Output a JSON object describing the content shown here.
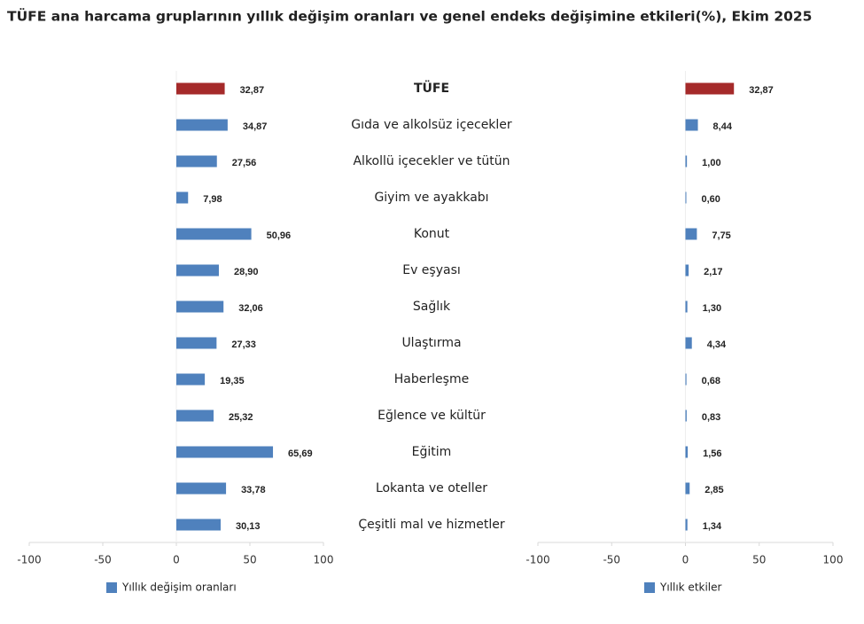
{
  "title": "TÜFE ana harcama gruplarının yıllık değişim oranları ve genel endeks değişimine etkileri(%), Ekim 2025",
  "chart_data": [
    {
      "type": "bar",
      "orientation": "horizontal",
      "categories": [
        "TÜFE",
        "Gıda ve alkolsüz içecekler",
        "Alkollü içecekler ve tütün",
        "Giyim ve ayakkabı",
        "Konut",
        "Ev eşyası",
        "Sağlık",
        "Ulaştırma",
        "Haberleşme",
        "Eğlence ve kültür",
        "Eğitim",
        "Lokanta ve oteller",
        "Çeşitli mal ve hizmetler"
      ],
      "series": [
        {
          "name": "Yıllık değişim oranları",
          "color": "#4f81bd",
          "colors": [
            "#a52a2a",
            "#4f81bd",
            "#4f81bd",
            "#4f81bd",
            "#4f81bd",
            "#4f81bd",
            "#4f81bd",
            "#4f81bd",
            "#4f81bd",
            "#4f81bd",
            "#4f81bd",
            "#4f81bd",
            "#4f81bd"
          ],
          "values": [
            32.87,
            34.87,
            27.56,
            7.98,
            50.96,
            28.9,
            32.06,
            27.33,
            19.35,
            25.32,
            65.69,
            33.78,
            30.13
          ],
          "value_labels": [
            "32,87",
            "34,87",
            "27,56",
            "7,98",
            "50,96",
            "28,90",
            "32,06",
            "27,33",
            "19,35",
            "25,32",
            "65,69",
            "33,78",
            "30,13"
          ]
        }
      ],
      "xlim": [
        -100,
        100
      ],
      "xticks": [
        -100,
        -50,
        0,
        50,
        100
      ]
    },
    {
      "type": "bar",
      "orientation": "horizontal",
      "series": [
        {
          "name": "Yıllık etkiler",
          "color": "#4f81bd",
          "colors": [
            "#a52a2a",
            "#4f81bd",
            "#4f81bd",
            "#4f81bd",
            "#4f81bd",
            "#4f81bd",
            "#4f81bd",
            "#4f81bd",
            "#4f81bd",
            "#4f81bd",
            "#4f81bd",
            "#4f81bd",
            "#4f81bd"
          ],
          "values": [
            32.87,
            8.44,
            1.0,
            0.6,
            7.75,
            2.17,
            1.3,
            4.34,
            0.68,
            0.83,
            1.56,
            2.85,
            1.34
          ],
          "value_labels": [
            "32,87",
            "8,44",
            "1,00",
            "0,60",
            "7,75",
            "2,17",
            "1,30",
            "4,34",
            "0,68",
            "0,83",
            "1,56",
            "2,85",
            "1,34"
          ]
        }
      ],
      "xlim": [
        -100,
        100
      ],
      "xticks": [
        -100,
        -50,
        0,
        50,
        100
      ]
    }
  ]
}
